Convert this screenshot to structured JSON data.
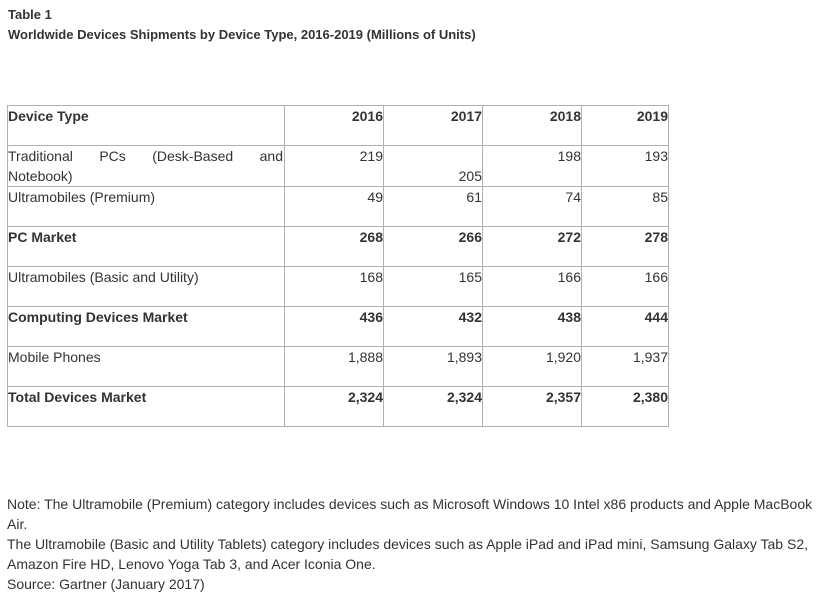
{
  "caption": {
    "label": "Table 1",
    "title": "Worldwide Devices Shipments by Device Type, 2016-2019 (Millions of Units)"
  },
  "table": {
    "header": {
      "device_type": "Device Type",
      "years": [
        "2016",
        "2017",
        "2018",
        "2019"
      ]
    },
    "rows": [
      {
        "label": "Traditional PCs (Desk-Based and Notebook)",
        "values": [
          "219",
          "205",
          "198",
          "193"
        ],
        "bold": false
      },
      {
        "label": "Ultramobiles (Premium)",
        "values": [
          "49",
          "61",
          "74",
          "85"
        ],
        "bold": false
      },
      {
        "label": "PC Market",
        "values": [
          "268",
          "266",
          "272",
          "278"
        ],
        "bold": true
      },
      {
        "label": "Ultramobiles (Basic and Utility)",
        "values": [
          "168",
          "165",
          "166",
          "166"
        ],
        "bold": false
      },
      {
        "label": "Computing Devices Market",
        "values": [
          "436",
          "432",
          "438",
          "444"
        ],
        "bold": true
      },
      {
        "label": "Mobile Phones",
        "values": [
          "1,888",
          "1,893",
          "1,920",
          "1,937"
        ],
        "bold": false
      },
      {
        "label": "Total Devices Market",
        "values": [
          "2,324",
          "2,324",
          "2,357",
          "2,380"
        ],
        "bold": true
      }
    ]
  },
  "notes": {
    "premium_note": "Note: The Ultramobile (Premium) category includes devices such as Microsoft Windows 10 Intel x86 products and Apple MacBook Air.",
    "basic_note": "The Ultramobile (Basic and Utility Tablets) category includes devices such as Apple iPad and iPad mini, Samsung Galaxy Tab S2, Amazon Fire HD, Lenovo Yoga Tab 3, and Acer Iconia One.",
    "source": "Source: Gartner (January 2017)"
  }
}
